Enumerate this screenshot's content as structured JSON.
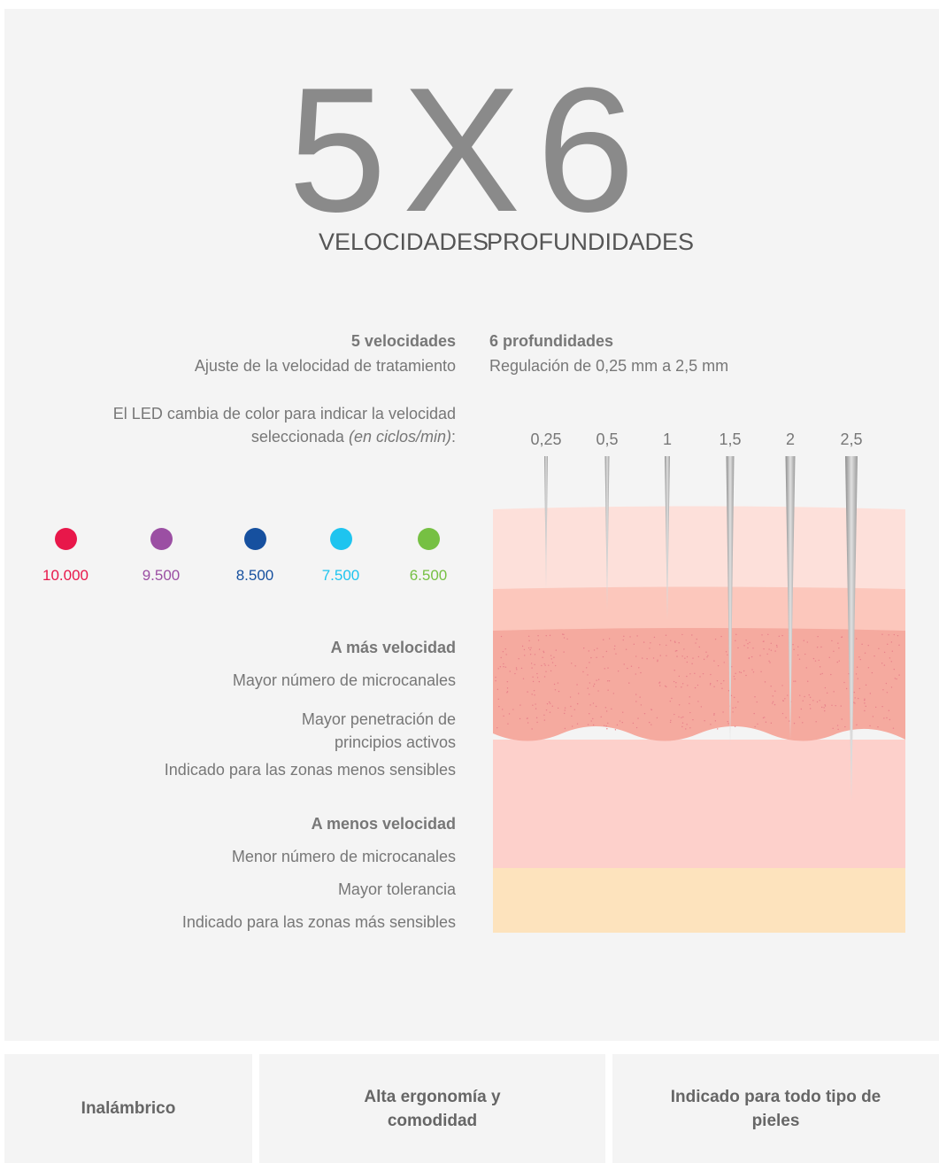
{
  "hero": {
    "title": "5X6",
    "left_label": "VELOCIDADES",
    "right_label": "PROFUNDIDADES"
  },
  "speeds": {
    "title": "5 velocidades",
    "subtitle": "Ajuste de la velocidad de tratamiento",
    "led_note": {
      "text": "El LED cambia de color para indicar la velocidad seleccionada",
      "unit": "(en ciclos/min)",
      "end": ":"
    },
    "levels": [
      {
        "label": "10.000",
        "color": "#e8174a"
      },
      {
        "label": "9.500",
        "color": "#9b4fa3"
      },
      {
        "label": "8.500",
        "color": "#16509f"
      },
      {
        "label": "7.500",
        "color": "#1ec4ef"
      },
      {
        "label": "6.500",
        "color": "#76c043"
      }
    ],
    "more": {
      "title": "A más velocidad",
      "items": [
        "Mayor número de microcanales",
        "Mayor penetración de principios activos",
        "Indicado para las zonas menos sensibles"
      ]
    },
    "less": {
      "title": "A menos velocidad",
      "items": [
        "Menor número de microcanales",
        "Mayor tolerancia",
        "Indicado para las zonas más sensibles"
      ]
    }
  },
  "depths": {
    "title": "6 profundidades",
    "subtitle": "Regulación de 0,25 mm a 2,5 mm",
    "levels": [
      "0,25",
      "0,5",
      "1",
      "1,5",
      "2",
      "2,5"
    ]
  },
  "features": [
    "Inalámbrico",
    "Alta ergonomía y comodidad",
    "Indicado para todo tipo de pieles"
  ]
}
